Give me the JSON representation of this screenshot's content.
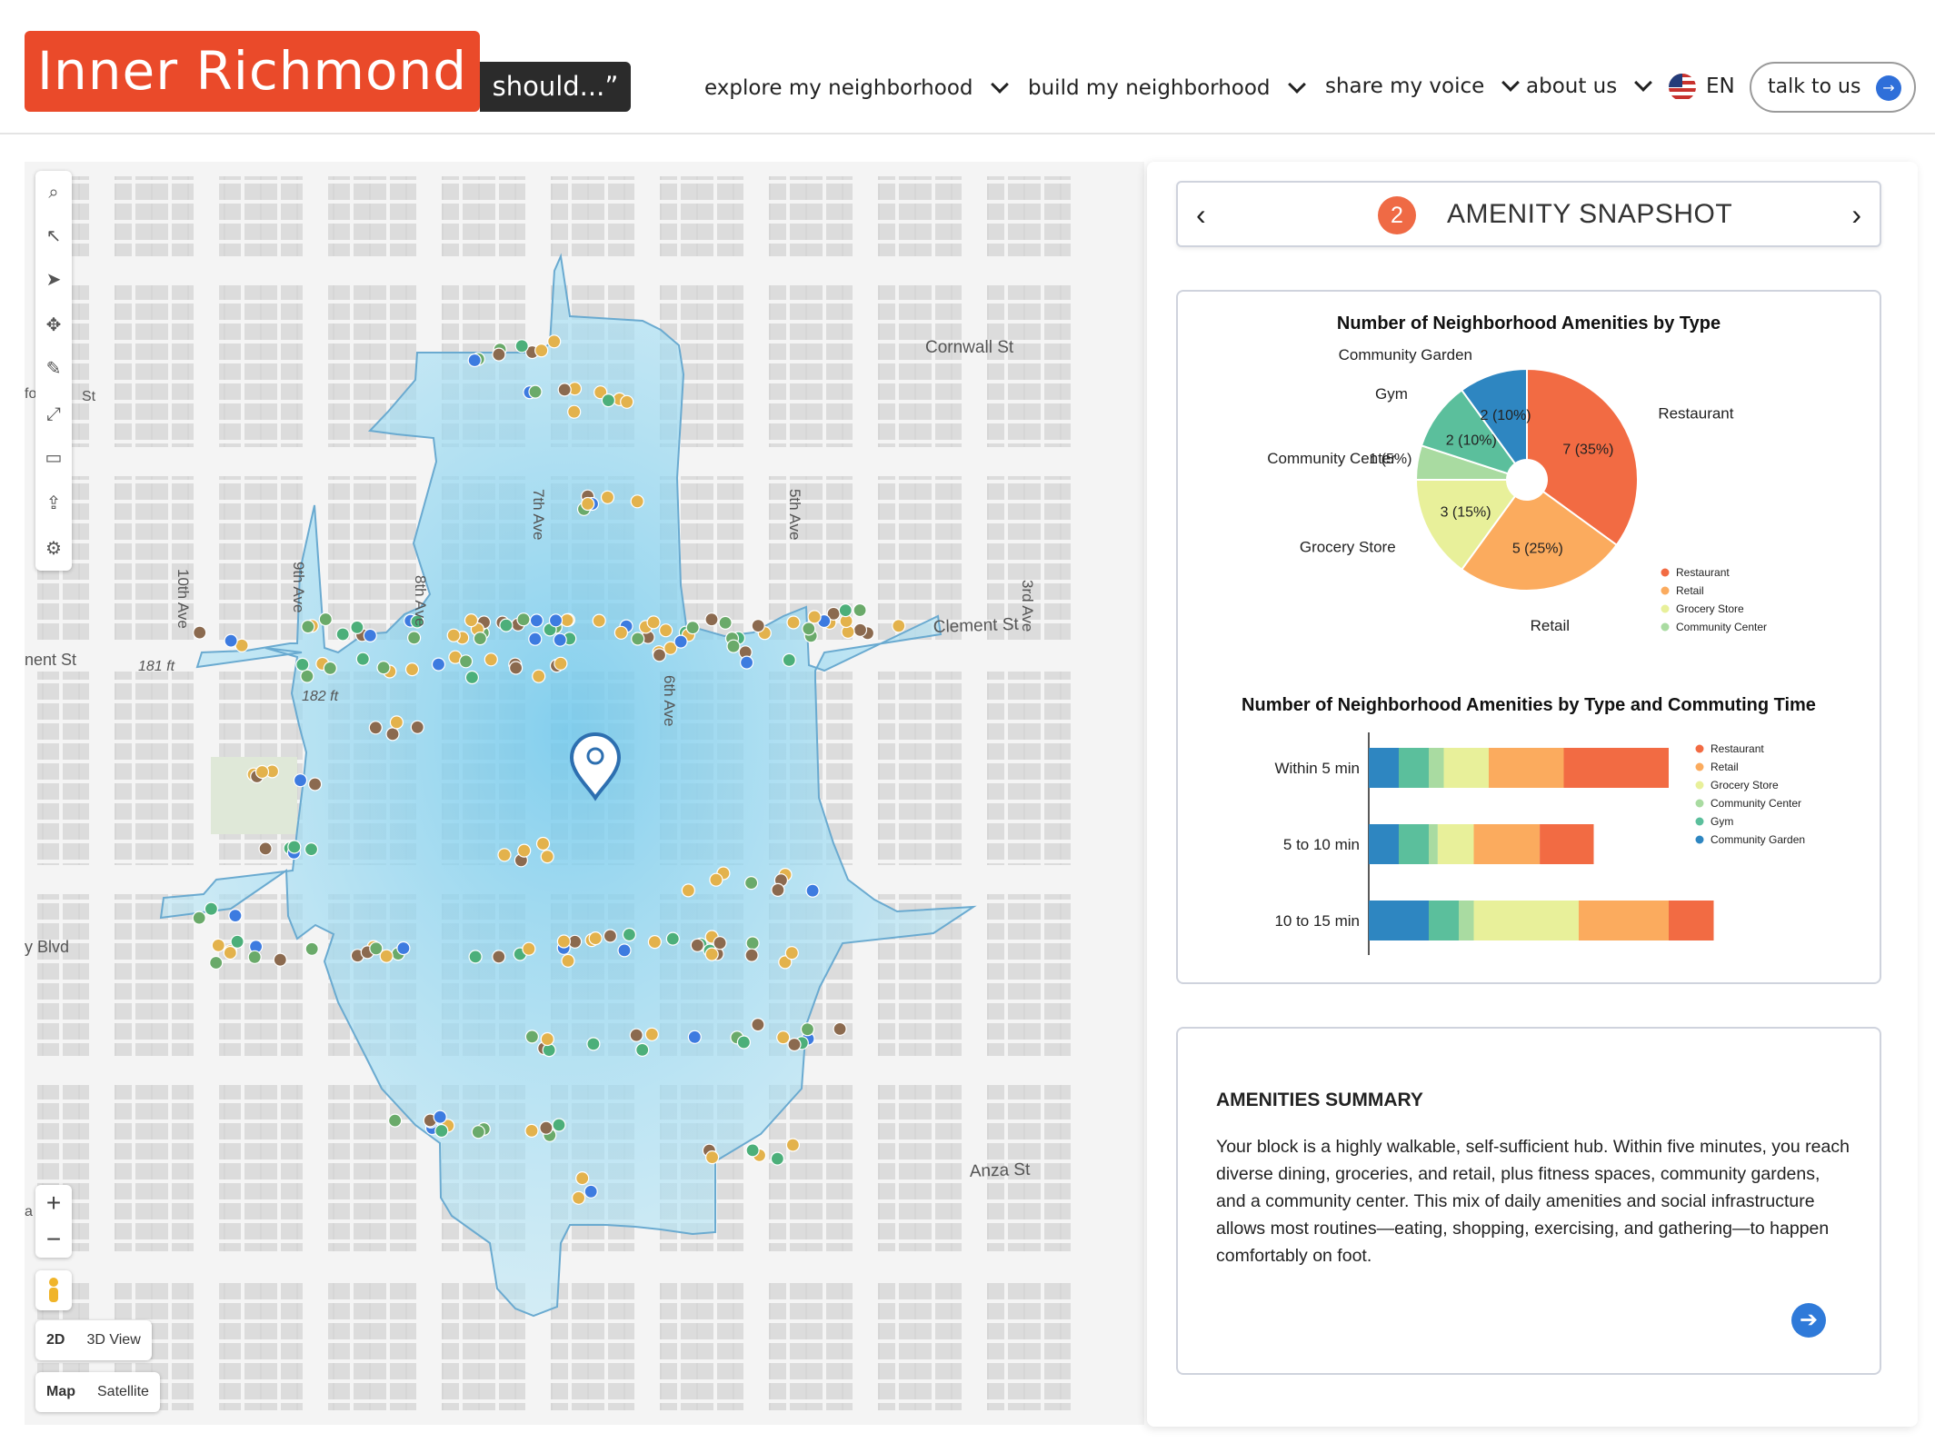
{
  "header": {
    "logo_text": "Inner Richmond",
    "logo_suffix": "should...”",
    "nav": [
      "explore my neighborhood",
      "build my neighborhood",
      "share my voice",
      "about us"
    ],
    "language": "EN",
    "contact_label": "talk to us"
  },
  "map": {
    "street_labels": [
      "Cornwall St",
      "Clement St",
      "Anza St",
      "10th Ave",
      "9th Ave",
      "8th Ave",
      "7th Ave",
      "6th Ave",
      "5th Ave",
      "3rd Ave",
      "nent St",
      "y Blvd",
      "fo",
      "St",
      "a"
    ],
    "elevation_labels": [
      "181 ft",
      "182 ft"
    ],
    "tools": [
      "search-icon",
      "select-icon",
      "navigate-icon",
      "move-icon",
      "draw-icon",
      "expand-icon",
      "folder-icon",
      "share-icon",
      "settings-icon"
    ],
    "zoom_in": "+",
    "zoom_out": "−",
    "view_toggle": [
      "2D",
      "3D View"
    ],
    "layer_toggle": [
      "Map",
      "Satellite"
    ],
    "isochrone_color": "#8fd3ee",
    "dot_colors": {
      "Restaurant": "#8b6a4f",
      "Retail": "#e3b24c",
      "Grocery Store": "#e3b24c",
      "Community Center": "#6aaa6a",
      "Gym": "#4caf7a",
      "Community Garden": "#3d7be0"
    }
  },
  "panel": {
    "step_number": "2",
    "title": "AMENITY SNAPSHOT",
    "prev_icon": "chevron-left-icon",
    "next_icon": "chevron-right-icon"
  },
  "chart_data": [
    {
      "type": "pie",
      "title": "Number of Neighborhood Amenities by Type",
      "categories": [
        "Restaurant",
        "Retail",
        "Grocery Store",
        "Community Center",
        "Gym",
        "Community Garden"
      ],
      "values": [
        7,
        5,
        3,
        1,
        2,
        2
      ],
      "slice_labels": [
        "7 (35%)",
        "5 (25%)",
        "3 (15%)",
        "1 (5%)",
        "2 (10%)",
        "2 (10%)"
      ],
      "colors": [
        "#f26b43",
        "#fbab5e",
        "#e8f09a",
        "#a9dba1",
        "#5bbf9c",
        "#2e86c1"
      ],
      "legend": "right"
    },
    {
      "type": "bar",
      "orientation": "horizontal",
      "stacked": true,
      "title": "Number of Neighborhood Amenities by Type and Commuting Time",
      "categories": [
        "Within 5 min",
        "5 to 10 min",
        "10 to 15 min"
      ],
      "series": [
        {
          "name": "Community Garden",
          "values": [
            1,
            1,
            2
          ]
        },
        {
          "name": "Gym",
          "values": [
            1,
            1,
            1
          ]
        },
        {
          "name": "Community Center",
          "values": [
            0.5,
            0.3,
            0.5
          ]
        },
        {
          "name": "Grocery Store",
          "values": [
            1.5,
            1.2,
            3.5
          ]
        },
        {
          "name": "Retail",
          "values": [
            2.5,
            2.2,
            3
          ]
        },
        {
          "name": "Restaurant",
          "values": [
            3.5,
            1.8,
            1.5
          ]
        }
      ],
      "colors": [
        "#2e86c1",
        "#5bbf9c",
        "#a9dba1",
        "#e8f09a",
        "#fbab5e",
        "#f26b43"
      ],
      "legend_order": [
        "Restaurant",
        "Retail",
        "Grocery Store",
        "Community Center",
        "Gym",
        "Community Garden"
      ],
      "legend": "right"
    }
  ],
  "summary": {
    "title": "AMENITIES SUMMARY",
    "body": "Your block is a highly walkable, self-sufficient hub. Within five minutes, you reach diverse dining, groceries, and retail, plus fitness spaces, community gardens, and a community center. This mix of daily amenities and social infrastructure allows most routines—eating, shopping, exercising, and gathering—to happen comfortably on foot.",
    "next_icon": "arrow-right-icon"
  }
}
